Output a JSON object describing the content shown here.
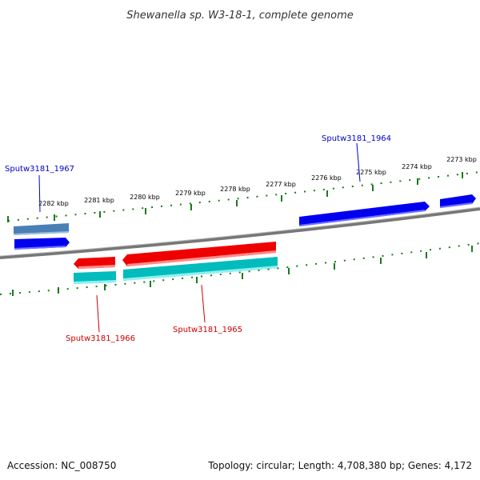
{
  "title": "Shewanella sp. W3-18-1, complete genome",
  "footer": {
    "accession": "Accession: NC_008750",
    "stats": "Topology: circular; Length: 4,708,380 bp; Genes: 4,172"
  },
  "ticks": [
    "2282 kbp",
    "2281 kbp",
    "2280 kbp",
    "2279 kbp",
    "2278 kbp",
    "2277 kbp",
    "2276 kbp",
    "2275 kbp",
    "2274 kbp",
    "2273 kbp"
  ],
  "genes": {
    "g1967": {
      "label": "Sputw3181_1967",
      "strand": "forward"
    },
    "g1964": {
      "label": "Sputw3181_1964",
      "strand": "forward"
    },
    "g1966": {
      "label": "Sputw3181_1966",
      "strand": "reverse"
    },
    "g1965": {
      "label": "Sputw3181_1965",
      "strand": "reverse"
    }
  },
  "colors": {
    "forward_cds": "#0000ee",
    "forward_gene": "#4a7fb5",
    "reverse_cds": "#ee0000",
    "reverse_gene": "#00cccc",
    "backbone": "#777777",
    "tick": "#1a7a1a",
    "forward_label": "#0000cc",
    "reverse_label": "#cc0000"
  }
}
